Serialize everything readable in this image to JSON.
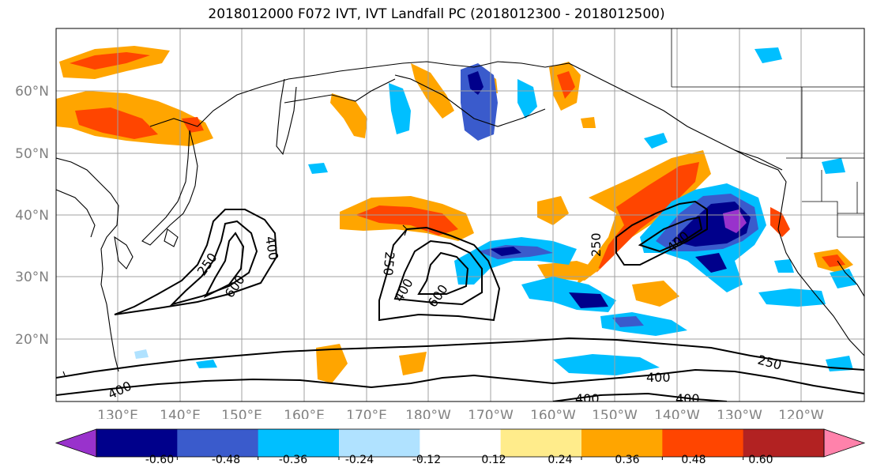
{
  "title": "2018012000 F072 IVT, IVT Landfall PC (2018012300 - 2018012500)",
  "map": {
    "lon_labels": [
      "130°E",
      "140°E",
      "150°E",
      "160°E",
      "170°E",
      "180°W",
      "170°W",
      "160°W",
      "150°W",
      "140°W",
      "130°W",
      "120°W"
    ],
    "lat_labels": [
      "60°N",
      "50°N",
      "40°N",
      "30°N",
      "20°N"
    ],
    "contour_labels": [
      "250",
      "600",
      "400",
      "250",
      "400",
      "600",
      "250",
      "400",
      "250",
      "400",
      "400",
      "400",
      "400"
    ],
    "grid_color": "#a0a0a0",
    "tick_label_color": "#808080"
  },
  "colorbar": {
    "colors": [
      "#9932cc",
      "#00008b",
      "#3a5bcc",
      "#00bfff",
      "#b0e2ff",
      "#ffffff",
      "#ffec8b",
      "#ffa500",
      "#ff4500",
      "#b22222",
      "#ff82ab"
    ],
    "tick_labels": [
      "-0.60",
      "-0.48",
      "-0.36",
      "-0.24",
      "-0.12",
      "0.12",
      "0.24",
      "0.36",
      "0.48",
      "0.60"
    ]
  }
}
